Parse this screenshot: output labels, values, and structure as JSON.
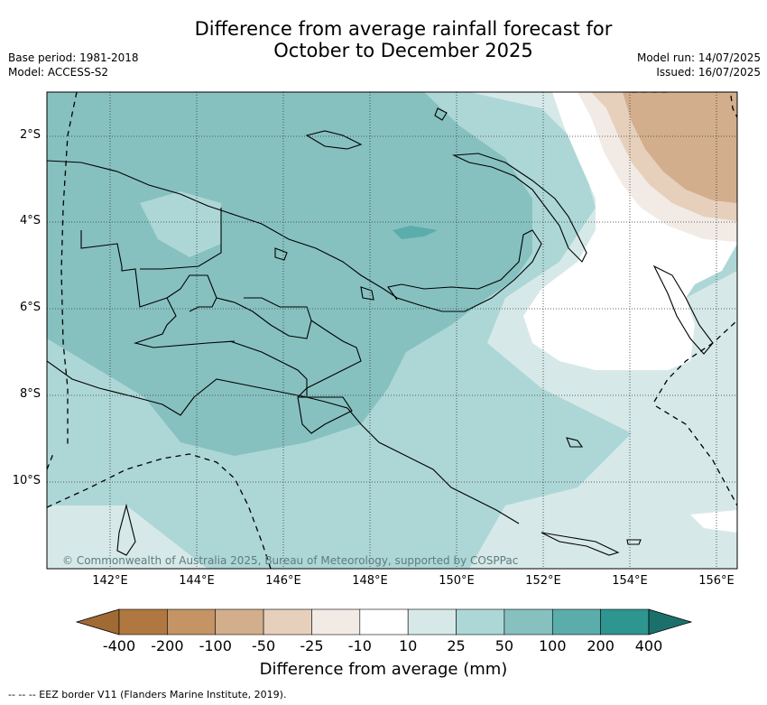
{
  "title_line1": "Difference from average rainfall forecast for",
  "title_line2": "October to December 2025",
  "meta_left": {
    "base_period": "Base period: 1981-2018",
    "model": "Model: ACCESS-S2"
  },
  "meta_right": {
    "model_run": "Model run: 14/07/2025",
    "issued": "Issued: 16/07/2025"
  },
  "lat_ticks": [
    "2°S",
    "4°S",
    "6°S",
    "8°S",
    "10°S"
  ],
  "lon_ticks": [
    "142°E",
    "144°E",
    "146°E",
    "148°E",
    "150°E",
    "152°E",
    "154°E",
    "156°E"
  ],
  "copyright": "© Commonwealth of Australia 2025, Bureau of Meteorology, supported by COSPPac",
  "colorbar": {
    "title": "Difference from average (mm)",
    "labels": [
      "-400",
      "-200",
      "-100",
      "-50",
      "-25",
      "-10",
      "10",
      "25",
      "50",
      "100",
      "200",
      "400"
    ],
    "colors": [
      "#a06a35",
      "#b07840",
      "#c49465",
      "#d2ae8c",
      "#e6d0bc",
      "#f2ebe5",
      "#ffffff",
      "#d6e9e8",
      "#add7d6",
      "#86c1c0",
      "#5aadab",
      "#2e9590",
      "#1b706c"
    ]
  },
  "footnote": "--  --  -- EEZ border V11 (Flanders Marine Institute, 2019)."
}
